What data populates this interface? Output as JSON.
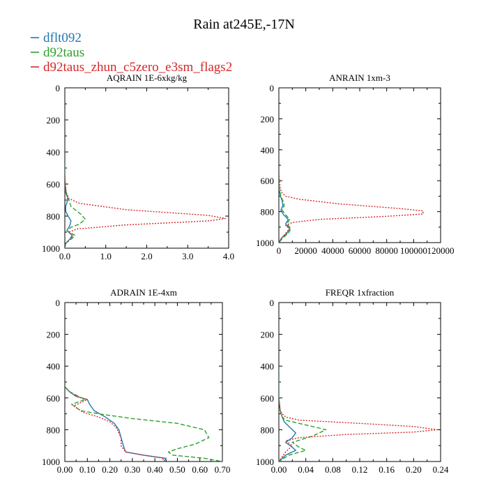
{
  "title": "Rain at245E,-17N",
  "colors": {
    "dflt092": "#1f77b4",
    "d92taus": "#2ca02c",
    "d92taus_zhun_c5zero_e3sm_flags2": "#d62728"
  },
  "legend": [
    {
      "name": "dflt092",
      "color": "#1f77b4",
      "dash": "solid"
    },
    {
      "name": "d92taus",
      "color": "#2ca02c",
      "dash": "dashed"
    },
    {
      "name": "d92taus_zhun_c5zero_e3sm_flags2",
      "color": "#d62728",
      "dash": "dotted"
    }
  ],
  "chart_data": [
    {
      "type": "line",
      "title": "AQRAIN  1E-6xkg/kg",
      "xlim": [
        0,
        4.0
      ],
      "ylim": [
        1000,
        0
      ],
      "y_inverted": true,
      "xticks": [
        0.0,
        1.0,
        2.0,
        3.0,
        4.0
      ],
      "xtick_labels": [
        "0.0",
        "1.0",
        "2.0",
        "3.0",
        "4.0"
      ],
      "yticks": [
        0,
        200,
        400,
        600,
        800,
        1000
      ],
      "ytick_labels": [
        "0",
        "200",
        "400",
        "600",
        "800",
        "1000"
      ],
      "series": [
        {
          "name": "dflt092",
          "x": [
            0,
            0,
            0.01,
            0.03,
            0.06,
            0.07,
            0.02,
            0.02,
            0.08,
            0.15,
            0.12,
            0.05,
            0.18,
            0.12,
            0.02,
            0
          ],
          "y": [
            450,
            550,
            600,
            650,
            680,
            700,
            740,
            770,
            800,
            830,
            860,
            890,
            920,
            945,
            970,
            1000
          ]
        },
        {
          "name": "d92taus",
          "x": [
            0,
            0,
            0.01,
            0.02,
            0.05,
            0.1,
            0.15,
            0.4,
            0.5,
            0.35,
            0.15,
            0.05,
            0.25,
            0.15,
            0.02,
            0
          ],
          "y": [
            450,
            550,
            600,
            650,
            680,
            700,
            740,
            790,
            820,
            850,
            870,
            890,
            920,
            945,
            970,
            1000
          ]
        },
        {
          "name": "d92taus_zhun_c5zero_e3sm_flags2",
          "x": [
            0,
            0.01,
            0.03,
            0.1,
            0.35,
            1.5,
            3.5,
            3.92,
            3.5,
            1.5,
            0.3,
            0.1,
            0.2,
            0.12,
            0.02,
            0
          ],
          "y": [
            550,
            600,
            650,
            690,
            720,
            760,
            795,
            815,
            830,
            855,
            880,
            900,
            925,
            945,
            970,
            1000
          ]
        }
      ]
    },
    {
      "type": "line",
      "title": "ANRAIN  1xm-3",
      "xlim": [
        0,
        120000
      ],
      "ylim": [
        1000,
        0
      ],
      "y_inverted": true,
      "xticks": [
        0,
        20000,
        40000,
        60000,
        80000,
        100000,
        120000
      ],
      "xtick_labels": [
        "0",
        "20000",
        "40000",
        "60000",
        "80000",
        "100000",
        "120000"
      ],
      "yticks": [
        0,
        200,
        400,
        600,
        800,
        1000
      ],
      "ytick_labels": [
        "0",
        "200",
        "400",
        "600",
        "800",
        "1000"
      ],
      "series": [
        {
          "name": "dflt092",
          "x": [
            0,
            0,
            300,
            1200,
            2500,
            3000,
            1500,
            3500,
            7000,
            5000,
            8000,
            6000,
            2000,
            0
          ],
          "y": [
            550,
            620,
            660,
            700,
            730,
            760,
            790,
            820,
            850,
            880,
            910,
            940,
            970,
            1000
          ]
        },
        {
          "name": "d92taus",
          "x": [
            0,
            0,
            500,
            1500,
            3000,
            4000,
            2500,
            5000,
            8000,
            6000,
            9000,
            7000,
            3000,
            0
          ],
          "y": [
            550,
            620,
            660,
            700,
            730,
            760,
            790,
            820,
            850,
            880,
            910,
            940,
            970,
            1000
          ]
        },
        {
          "name": "d92taus_zhun_c5zero_e3sm_flags2",
          "x": [
            0,
            1000,
            2500,
            5000,
            15000,
            45000,
            90000,
            107000,
            107000,
            80000,
            30000,
            10000,
            5000,
            8000,
            5000,
            2000,
            0
          ],
          "y": [
            550,
            650,
            680,
            700,
            720,
            750,
            780,
            795,
            815,
            830,
            850,
            870,
            890,
            910,
            940,
            970,
            1000
          ]
        }
      ]
    },
    {
      "type": "line",
      "title": "ADRAIN  1E-4xm",
      "xlim": [
        0,
        0.7
      ],
      "ylim": [
        1000,
        0
      ],
      "y_inverted": true,
      "xticks": [
        0,
        0.1,
        0.2,
        0.3,
        0.4,
        0.5,
        0.6,
        0.7
      ],
      "xtick_labels": [
        "0.00",
        "0.10",
        "0.20",
        "0.30",
        "0.40",
        "0.50",
        "0.60",
        "0.70"
      ],
      "yticks": [
        0,
        200,
        400,
        600,
        800,
        1000
      ],
      "ytick_labels": [
        "0",
        "200",
        "400",
        "600",
        "800",
        "1000"
      ],
      "series": [
        {
          "name": "dflt092",
          "x": [
            0,
            0.02,
            0.05,
            0.1,
            0.11,
            0.13,
            0.18,
            0.22,
            0.24,
            0.25,
            0.26,
            0.27,
            0.35,
            0.45,
            0.44
          ],
          "y": [
            530,
            560,
            590,
            610,
            640,
            680,
            720,
            760,
            800,
            850,
            900,
            940,
            960,
            980,
            1000
          ]
        },
        {
          "name": "d92taus",
          "x": [
            0,
            0.02,
            0.06,
            0.09,
            0.03,
            0.07,
            0.15,
            0.3,
            0.5,
            0.62,
            0.64,
            0.58,
            0.5,
            0.46,
            0.48,
            0.62,
            0.7
          ],
          "y": [
            530,
            560,
            590,
            610,
            640,
            680,
            700,
            730,
            760,
            800,
            850,
            890,
            920,
            940,
            960,
            980,
            1000
          ]
        },
        {
          "name": "d92taus_zhun_c5zero_e3sm_flags2",
          "x": [
            0,
            0.02,
            0.05,
            0.1,
            0.04,
            0.08,
            0.15,
            0.2,
            0.23,
            0.25,
            0.25,
            0.27,
            0.35,
            0.44,
            0.43
          ],
          "y": [
            530,
            560,
            590,
            610,
            650,
            690,
            720,
            750,
            790,
            850,
            900,
            940,
            960,
            980,
            1000
          ]
        }
      ]
    },
    {
      "type": "line",
      "title": "FREQR  1xfraction",
      "xlim": [
        0,
        0.24
      ],
      "ylim": [
        1000,
        0
      ],
      "y_inverted": true,
      "xticks": [
        0,
        0.04,
        0.08,
        0.12,
        0.16,
        0.2,
        0.24
      ],
      "xtick_labels": [
        "0.00",
        "0.04",
        "0.08",
        "0.12",
        "0.16",
        "0.20",
        "0.24"
      ],
      "yticks": [
        0,
        200,
        400,
        600,
        800,
        1000
      ],
      "ytick_labels": [
        "0",
        "200",
        "400",
        "600",
        "800",
        "1000"
      ],
      "series": [
        {
          "name": "dflt092",
          "x": [
            0,
            0,
            0.002,
            0.005,
            0.008,
            0.015,
            0.025,
            0.02,
            0.01,
            0.02,
            0.025,
            0.01,
            0
          ],
          "y": [
            400,
            600,
            680,
            720,
            750,
            780,
            820,
            850,
            880,
            910,
            930,
            960,
            1000
          ]
        },
        {
          "name": "d92taus",
          "x": [
            0,
            0,
            0.002,
            0.005,
            0.01,
            0.04,
            0.07,
            0.05,
            0.02,
            0.03,
            0.04,
            0.015,
            0
          ],
          "y": [
            400,
            600,
            680,
            720,
            740,
            770,
            800,
            840,
            880,
            910,
            930,
            960,
            1000
          ]
        },
        {
          "name": "d92taus_zhun_c5zero_e3sm_flags2",
          "x": [
            0,
            0.002,
            0.005,
            0.01,
            0.03,
            0.12,
            0.2,
            0.235,
            0.2,
            0.1,
            0.03,
            0.01,
            0.02,
            0.01,
            0
          ],
          "y": [
            600,
            680,
            700,
            720,
            740,
            760,
            780,
            800,
            815,
            830,
            850,
            870,
            900,
            940,
            1000
          ]
        }
      ]
    }
  ]
}
